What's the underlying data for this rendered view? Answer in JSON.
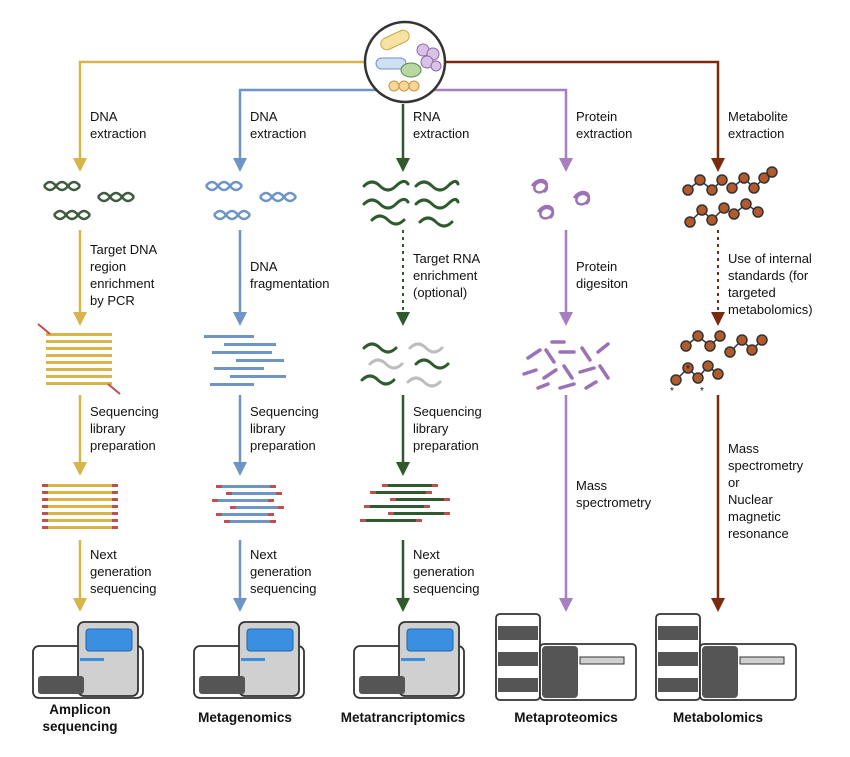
{
  "colors": {
    "amplicon": "#d8b54b",
    "metagenomics": "#6f95c6",
    "metatranscriptomics": "#2f5a2e",
    "metaproteomics": "#a67fc0",
    "metabolomics": "#7a2a0e",
    "dna_dark": "#3f5c3f",
    "dna_blue": "#6f95c6",
    "rna_green": "#2f5a2e",
    "rna_grey": "#bdbdbd",
    "protein": "#9b72b5",
    "metabolite_dot": "#b25a2b",
    "adapter_red": "#c0504d",
    "screen_blue": "#3b8fe0",
    "machine_grey": "#d0d0d0",
    "machine_dark": "#555555"
  },
  "icons": {
    "source": "microbial-community-icon",
    "sequencer": "sequencer-machine-icon",
    "mass_spec": "mass-spectrometer-icon"
  },
  "workflows": [
    {
      "id": "amplicon",
      "extraction": [
        "DNA",
        "extraction"
      ],
      "step1": [
        "Target DNA",
        "region",
        "enrichment",
        "by PCR"
      ],
      "step2": [
        "Sequencing",
        "library",
        "preparation"
      ],
      "step3": [
        "Next",
        "generation",
        "sequencing"
      ],
      "title": [
        "Amplicon",
        "sequencing"
      ]
    },
    {
      "id": "metagenomics",
      "extraction": [
        "DNA",
        "extraction"
      ],
      "step1": [
        "DNA",
        "fragmentation"
      ],
      "step2": [
        "Sequencing",
        "library",
        "preparation"
      ],
      "step3": [
        "Next",
        "generation",
        "sequencing"
      ],
      "title": [
        "Metagenomics"
      ]
    },
    {
      "id": "metatranscriptomics",
      "extraction": [
        "RNA",
        "extraction"
      ],
      "step1": [
        "Target RNA",
        "enrichment",
        "(optional)"
      ],
      "step2": [
        "Sequencing",
        "library",
        "preparation"
      ],
      "step3": [
        "Next",
        "generation",
        "sequencing"
      ],
      "title": [
        "Metatrancriptomics"
      ]
    },
    {
      "id": "metaproteomics",
      "extraction": [
        "Protein",
        "extraction"
      ],
      "step1": [
        "Protein",
        "digesiton"
      ],
      "step2": [
        "Mass",
        "spectrometry"
      ],
      "title": [
        "Metaproteomics"
      ]
    },
    {
      "id": "metabolomics",
      "extraction": [
        "Metabolite",
        "extraction"
      ],
      "step1": [
        "Use of internal",
        "standards (for",
        "targeted",
        "metabolomics)"
      ],
      "step2": [
        "Mass",
        "spectrometry",
        "or",
        "Nuclear",
        "magnetic",
        "resonance"
      ],
      "title": [
        "Metabolomics"
      ]
    }
  ]
}
